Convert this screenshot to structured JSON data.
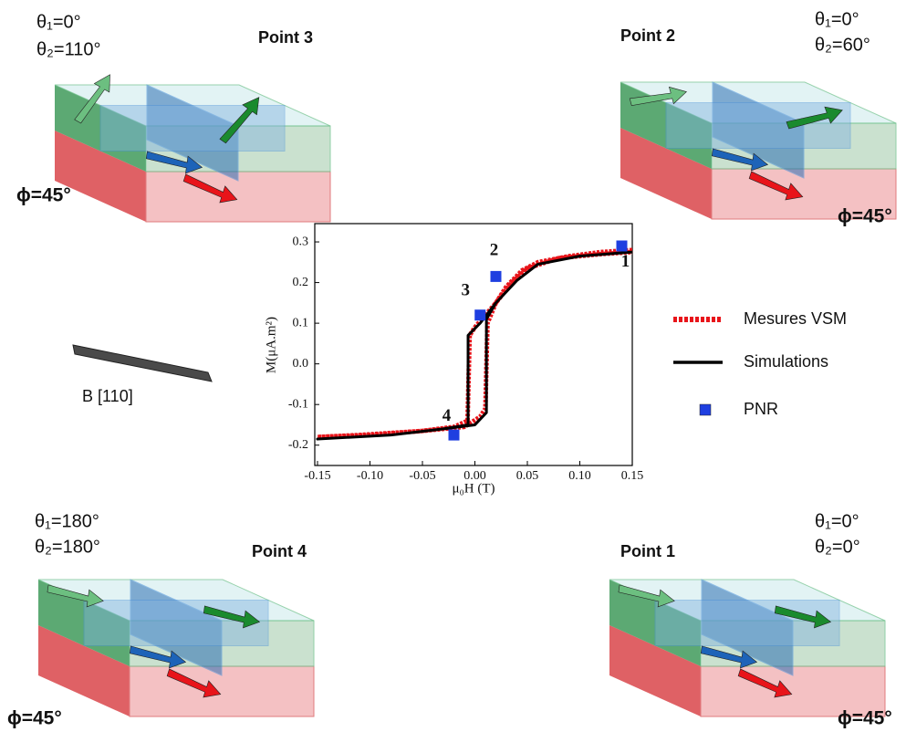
{
  "chart_data": {
    "type": "line",
    "xlabel": "μ₀H (T)",
    "ylabel": "M(μA.m²)",
    "xlim": [
      -0.15,
      0.15
    ],
    "xticks": [
      {
        "value": -0.15,
        "label": "-0.15"
      },
      {
        "value": -0.1,
        "label": "-0.10"
      },
      {
        "value": -0.05,
        "label": "-0.05"
      },
      {
        "value": 0,
        "label": "0.00"
      },
      {
        "value": 0.05,
        "label": "0.05"
      },
      {
        "value": 0.1,
        "label": "0.10"
      },
      {
        "value": 0.15,
        "label": "0.15"
      }
    ],
    "ylim": [
      -0.25,
      0.345
    ],
    "yticks": [
      0.3,
      0.2,
      0.1,
      {
        "value": 0,
        "label": "0.0"
      },
      -0.1,
      -0.2
    ],
    "series": [
      {
        "name": "Mesures VSM",
        "color": "#e8141a",
        "style": "dotted",
        "x": [
          0.15,
          0.12,
          0.09,
          0.06,
          0.045,
          0.03,
          0.02,
          0.01,
          0.0,
          -0.005,
          -0.007,
          -0.02,
          -0.05,
          -0.08,
          -0.11,
          -0.15,
          -0.1,
          -0.05,
          -0.01,
          0.005,
          0.01,
          0.012,
          0.02,
          0.035,
          0.05,
          0.08,
          0.12,
          0.15
        ],
        "values": [
          0.28,
          0.275,
          0.265,
          0.25,
          0.23,
          0.19,
          0.15,
          0.12,
          0.09,
          0.07,
          -0.14,
          -0.155,
          -0.165,
          -0.17,
          -0.175,
          -0.18,
          -0.175,
          -0.165,
          -0.155,
          -0.13,
          -0.11,
          0.1,
          0.15,
          0.2,
          0.235,
          0.26,
          0.27,
          0.275
        ]
      },
      {
        "name": "Simulations",
        "color": "#000000",
        "style": "solid",
        "x": [
          0.15,
          0.1,
          0.06,
          0.04,
          0.02,
          0.005,
          -0.0065,
          -0.0065,
          -0.03,
          -0.08,
          -0.15,
          -0.08,
          -0.03,
          0.0,
          0.011,
          0.011,
          0.02,
          0.04,
          0.06,
          0.1,
          0.15
        ],
        "values": [
          0.275,
          0.265,
          0.245,
          0.205,
          0.15,
          0.1,
          0.07,
          -0.15,
          -0.16,
          -0.175,
          -0.185,
          -0.175,
          -0.16,
          -0.15,
          -0.12,
          0.11,
          0.15,
          0.205,
          0.245,
          0.265,
          0.275
        ]
      },
      {
        "name": "PNR",
        "color": "#1f3fe0",
        "style": "markers",
        "x": [
          -0.02,
          0.005,
          0.02,
          0.14
        ],
        "values": [
          -0.175,
          0.12,
          0.215,
          0.29
        ]
      }
    ],
    "annotations": [
      "4",
      "3",
      "2",
      "1"
    ]
  },
  "field_label": "B [110]",
  "panels": [
    {
      "title": "Point 3",
      "theta1": "θ₁=0°",
      "theta2": "θ₂=110°",
      "phi": "ϕ=45°"
    },
    {
      "title": "Point 2",
      "theta1": "θ₁=0°",
      "theta2": "θ₂=60°",
      "phi": "ϕ=45°"
    },
    {
      "title": "Point 4",
      "theta1": "θ₁=180°",
      "theta2": "θ₂=180°",
      "phi": "ϕ=45°"
    },
    {
      "title": "Point 1",
      "theta1": "θ₁=0°",
      "theta2": "θ₂=0°",
      "phi": "ϕ=45°"
    }
  ]
}
